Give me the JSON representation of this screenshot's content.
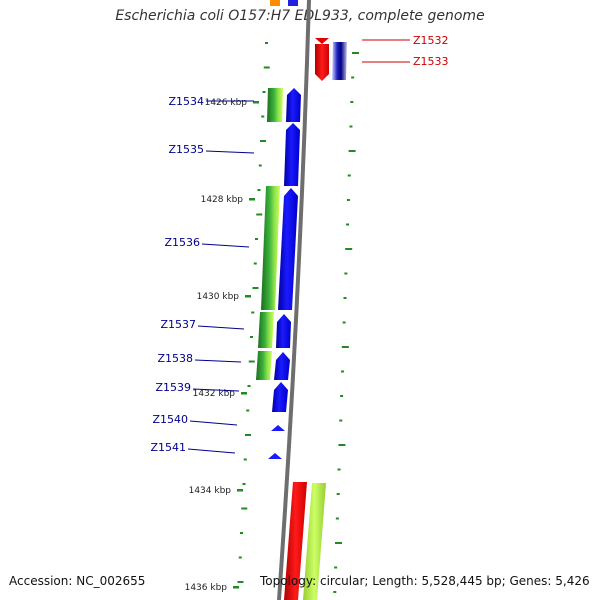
{
  "title": "Escherichia coli O157:H7 EDL933, complete genome",
  "footer": {
    "accession": "Accession: NC_002655",
    "topology_prefix": "Topology: circular; ",
    "length": "Length: 5,528,445 bp; ",
    "genes": "Genes: 5,426"
  },
  "ticks": [
    "1426 kbp",
    "1428 kbp",
    "1430 kbp",
    "1432 kbp",
    "1434 kbp",
    "1436 kbp"
  ],
  "genes": [
    {
      "label": "Z1532",
      "strand": "reverse",
      "color": "#e00000"
    },
    {
      "label": "Z1533",
      "strand": "reverse",
      "color": "#e00000"
    },
    {
      "label": "Z1534",
      "strand": "forward",
      "color": "#0000cc"
    },
    {
      "label": "Z1535",
      "strand": "forward",
      "color": "#0000cc"
    },
    {
      "label": "Z1536",
      "strand": "forward",
      "color": "#0000cc"
    },
    {
      "label": "Z1537",
      "strand": "forward",
      "color": "#0000cc"
    },
    {
      "label": "Z1538",
      "strand": "forward",
      "color": "#0000cc"
    },
    {
      "label": "Z1539",
      "strand": "forward",
      "color": "#0000cc"
    },
    {
      "label": "Z1540",
      "strand": "forward",
      "color": "#0000cc"
    },
    {
      "label": "Z1541",
      "strand": "forward",
      "color": "#0000cc"
    }
  ],
  "colors": {
    "backbone": "#888888",
    "forward": "#0000e0",
    "reverse": "#e00000",
    "gc_dark": "#228b22",
    "gc_light": "#adff2f",
    "tick": "#228b22",
    "label_forward": "#00008b",
    "label_reverse": "#cc0000"
  }
}
